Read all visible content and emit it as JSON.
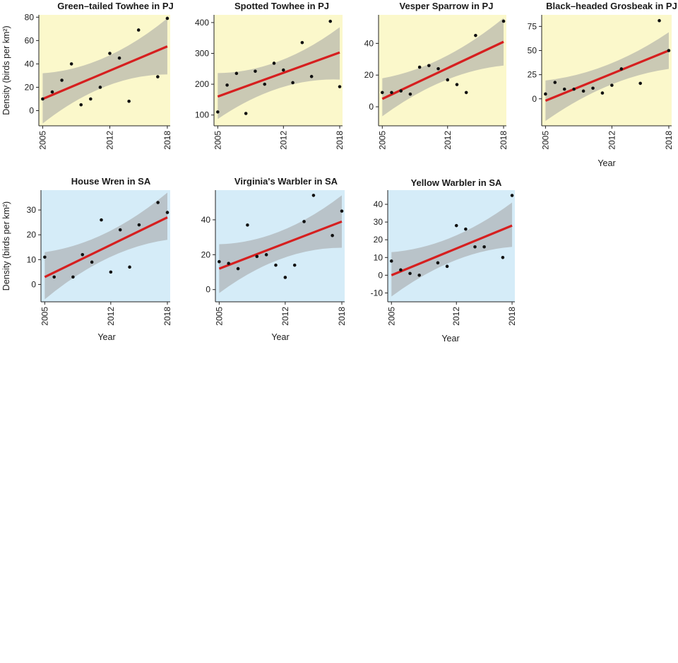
{
  "figure": {
    "y_axis_title": "Density (birds per km²)",
    "x_axis_title": "Year"
  },
  "colors": {
    "pj_panel_bg": "#fbf8cb",
    "sa_panel_bg": "#d5ecf8",
    "band": "#a3a3a3",
    "trend_line": "#d61f1f",
    "point": "#111111",
    "axis": "#222222"
  },
  "chart_data": [
    {
      "type": "scatter",
      "title": "Green–tailed Towhee in PJ",
      "habitat": "PJ",
      "xlabel": "",
      "ylabel": "Density (birds per km²)",
      "xlim": [
        2004.6,
        2018.3
      ],
      "ylim": [
        -13,
        82
      ],
      "x_ticks": [
        2005,
        2012,
        2018
      ],
      "y_ticks": [
        0,
        20,
        40,
        60,
        80
      ],
      "points": {
        "x": [
          2005,
          2006,
          2007,
          2008,
          2009,
          2010,
          2011,
          2012,
          2013,
          2014,
          2015,
          2017,
          2018
        ],
        "y": [
          10,
          16,
          26,
          40,
          5,
          10,
          20,
          49,
          45,
          8,
          69,
          29,
          79
        ]
      },
      "trend": {
        "x": [
          2005,
          2018
        ],
        "y": [
          10,
          55
        ]
      },
      "ci_band": {
        "x": [
          2005,
          2018
        ],
        "lower": [
          -11,
          31
        ],
        "upper": [
          32,
          79
        ],
        "mid": [
          11,
          55
        ]
      }
    },
    {
      "type": "scatter",
      "title": "Spotted Towhee in PJ",
      "habitat": "PJ",
      "xlabel": "",
      "ylabel": "",
      "xlim": [
        2004.6,
        2018.3
      ],
      "ylim": [
        65,
        425
      ],
      "x_ticks": [
        2005,
        2012,
        2018
      ],
      "y_ticks": [
        100,
        200,
        300,
        400
      ],
      "points": {
        "x": [
          2005,
          2006,
          2007,
          2008,
          2009,
          2010,
          2011,
          2012,
          2013,
          2014,
          2015,
          2017,
          2018
        ],
        "y": [
          110,
          197,
          235,
          105,
          242,
          200,
          268,
          246,
          205,
          335,
          225,
          404,
          192
        ]
      },
      "trend": {
        "x": [
          2005,
          2018
        ],
        "y": [
          160,
          303
        ]
      },
      "ci_band": {
        "x": [
          2005,
          2018
        ],
        "lower": [
          87,
          215
        ],
        "upper": [
          236,
          385
        ],
        "mid": [
          161,
          300
        ]
      }
    },
    {
      "type": "scatter",
      "title": "Vesper Sparrow in PJ",
      "habitat": "PJ",
      "xlabel": "",
      "ylabel": "",
      "xlim": [
        2004.6,
        2018.3
      ],
      "ylim": [
        -12,
        58
      ],
      "x_ticks": [
        2005,
        2012,
        2018
      ],
      "y_ticks": [
        0,
        20,
        40
      ],
      "points": {
        "x": [
          2005,
          2006,
          2007,
          2008,
          2009,
          2010,
          2011,
          2012,
          2013,
          2014,
          2015,
          2018
        ],
        "y": [
          9,
          9,
          10,
          8,
          25,
          26,
          24,
          17,
          14,
          9,
          45,
          54
        ]
      },
      "trend": {
        "x": [
          2005,
          2018
        ],
        "y": [
          5,
          41
        ]
      },
      "ci_band": {
        "x": [
          2005,
          2018
        ],
        "lower": [
          -6,
          26
        ],
        "upper": [
          18,
          56
        ],
        "mid": [
          6,
          41
        ]
      }
    },
    {
      "type": "scatter",
      "title": "Black–headed Grosbeak in PJ",
      "habitat": "PJ",
      "xlabel": "Year",
      "ylabel": "",
      "xlim": [
        2004.6,
        2018.3
      ],
      "ylim": [
        -28,
        87
      ],
      "x_ticks": [
        2005,
        2012,
        2018
      ],
      "y_ticks": [
        0,
        25,
        50,
        75
      ],
      "points": {
        "x": [
          2005,
          2006,
          2007,
          2008,
          2009,
          2010,
          2011,
          2012,
          2013,
          2015,
          2017,
          2018
        ],
        "y": [
          5,
          17,
          10,
          10,
          8,
          11,
          6,
          14,
          31,
          16,
          81,
          50
        ]
      },
      "trend": {
        "x": [
          2005,
          2018
        ],
        "y": [
          -2,
          50
        ]
      },
      "ci_band": {
        "x": [
          2005,
          2018
        ],
        "lower": [
          -23,
          31
        ],
        "upper": [
          19,
          69
        ],
        "mid": [
          -2,
          50
        ]
      }
    },
    {
      "type": "scatter",
      "title": "House Wren in SA",
      "habitat": "SA",
      "xlabel": "Year",
      "ylabel": "Density (birds per km²)",
      "xlim": [
        2004.6,
        2018.3
      ],
      "ylim": [
        -7,
        38
      ],
      "x_ticks": [
        2005,
        2012,
        2018
      ],
      "y_ticks": [
        0,
        10,
        20,
        30
      ],
      "points": {
        "x": [
          2005,
          2006,
          2008,
          2009,
          2010,
          2011,
          2012,
          2013,
          2014,
          2015,
          2017,
          2018
        ],
        "y": [
          11,
          3,
          3,
          12,
          9,
          26,
          5,
          22,
          7,
          24,
          33,
          29
        ]
      },
      "trend": {
        "x": [
          2005,
          2018
        ],
        "y": [
          3,
          27
        ]
      },
      "ci_band": {
        "x": [
          2005,
          2018
        ],
        "lower": [
          -6,
          18
        ],
        "upper": [
          13,
          37
        ],
        "mid": [
          3.5,
          27.5
        ]
      }
    },
    {
      "type": "scatter",
      "title": "Virginia's Warbler in SA",
      "habitat": "SA",
      "xlabel": "Year",
      "ylabel": "",
      "xlim": [
        2004.6,
        2018.3
      ],
      "ylim": [
        -7,
        57
      ],
      "x_ticks": [
        2005,
        2012,
        2018
      ],
      "y_ticks": [
        0,
        20,
        40
      ],
      "points": {
        "x": [
          2005,
          2006,
          2007,
          2008,
          2009,
          2010,
          2011,
          2012,
          2013,
          2014,
          2015,
          2017,
          2018
        ],
        "y": [
          16,
          15,
          12,
          37,
          19,
          20,
          14,
          7,
          14,
          39,
          54,
          31,
          45
        ]
      },
      "trend": {
        "x": [
          2005,
          2018
        ],
        "y": [
          12,
          39
        ]
      },
      "ci_band": {
        "x": [
          2005,
          2018
        ],
        "lower": [
          -2,
          24
        ],
        "upper": [
          26,
          54
        ],
        "mid": [
          12,
          39
        ]
      }
    },
    {
      "type": "scatter",
      "title": "Yellow Warbler in SA",
      "habitat": "SA",
      "xlabel": "Year",
      "ylabel": "",
      "xlim": [
        2004.6,
        2018.3
      ],
      "ylim": [
        -15,
        48
      ],
      "x_ticks": [
        2005,
        2012,
        2018
      ],
      "y_ticks": [
        -10,
        0,
        10,
        20,
        30,
        40
      ],
      "points": {
        "x": [
          2005,
          2006,
          2007,
          2008,
          2010,
          2011,
          2012,
          2013,
          2014,
          2015,
          2017,
          2018
        ],
        "y": [
          8,
          3,
          1,
          0,
          7,
          5,
          28,
          26,
          16,
          16,
          10,
          45
        ]
      },
      "trend": {
        "x": [
          2005,
          2018
        ],
        "y": [
          0,
          28
        ]
      },
      "ci_band": {
        "x": [
          2005,
          2018
        ],
        "lower": [
          -12,
          16
        ],
        "upper": [
          13,
          41
        ],
        "mid": [
          0.5,
          28.5
        ]
      }
    }
  ]
}
